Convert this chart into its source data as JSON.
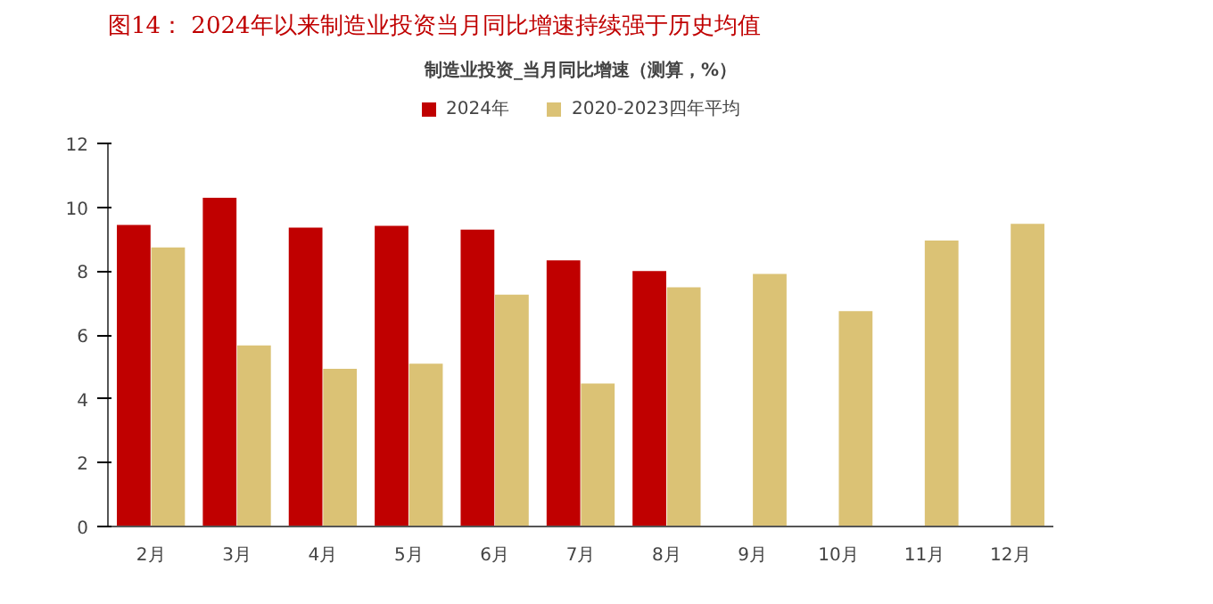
{
  "chart_data": {
    "type": "bar",
    "title": "图14：  2024年以来制造业投资当月同比增速持续强于历史均值",
    "subtitle": "制造业投资_当月同比增速（测算，%）",
    "categories": [
      "2月",
      "3月",
      "4月",
      "5月",
      "6月",
      "7月",
      "8月",
      "9月",
      "10月",
      "11月",
      "12月"
    ],
    "series": [
      {
        "name": "2024年",
        "color": "#c00000",
        "values": [
          9.45,
          10.3,
          9.36,
          9.42,
          9.3,
          8.34,
          8.0,
          null,
          null,
          null,
          null
        ]
      },
      {
        "name": "2020-2023四年平均",
        "color": "#dbc275",
        "values": [
          8.74,
          5.67,
          4.94,
          5.1,
          7.26,
          4.48,
          7.49,
          7.91,
          6.75,
          8.96,
          9.48
        ]
      }
    ],
    "ylim": [
      0,
      12
    ],
    "yticks": [
      0,
      2,
      4,
      6,
      8,
      10,
      12
    ],
    "grid": false,
    "legend": "top"
  }
}
